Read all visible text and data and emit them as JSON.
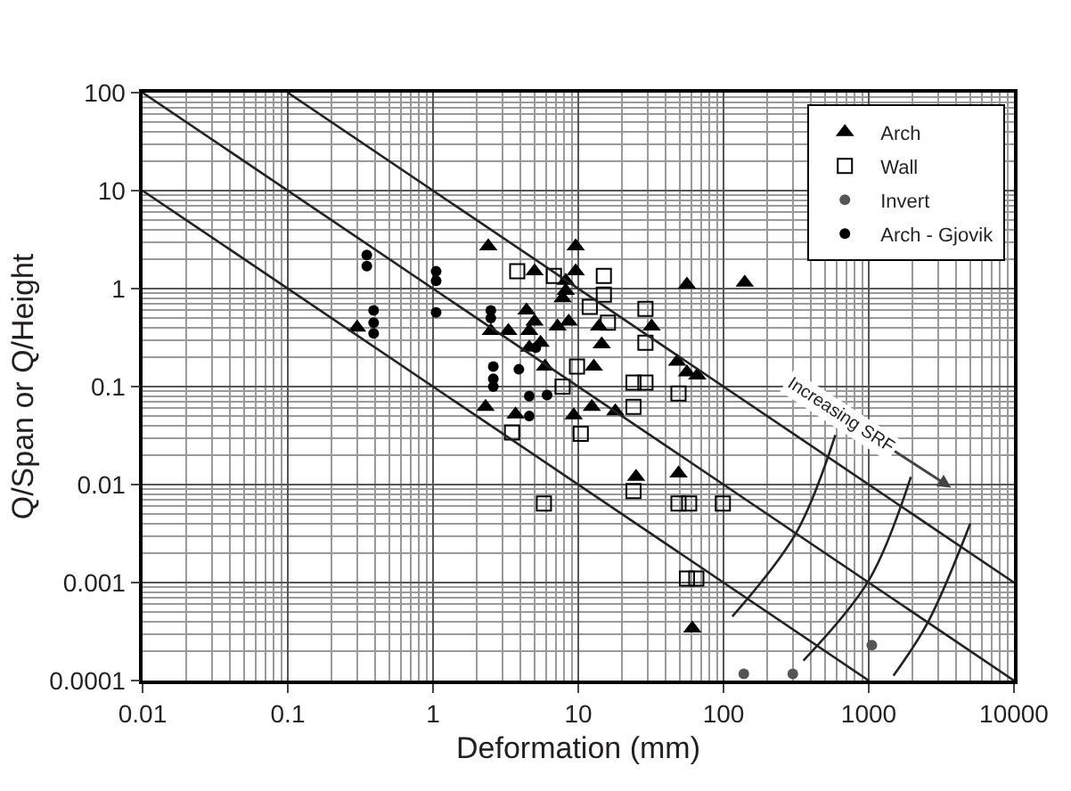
{
  "chart_data": {
    "type": "scatter",
    "xlabel": "Deformation (mm)",
    "ylabel": "Q/Span or Q/Height",
    "log": "xy",
    "grid": true,
    "legend": "top right",
    "xlim": [
      0.01,
      10000
    ],
    "xticks": [
      0.01,
      0.1,
      1,
      10,
      100,
      1000,
      10000
    ],
    "ylim": [
      0.0001,
      100
    ],
    "yticks": [
      0.0001,
      0.001,
      0.01,
      0.1,
      1,
      10,
      100
    ],
    "annotations": [
      "Increasing SRF"
    ],
    "series": [
      {
        "name": "Arch",
        "marker": "triangle",
        "color": "#000000",
        "x": [
          0.3,
          2.4,
          5,
          2.5,
          3.3,
          4.6,
          5,
          2.3,
          3.7,
          4.6,
          5.9,
          9.6,
          9.6,
          8.2,
          8.2,
          7.8,
          4.4,
          32,
          13.9,
          7.2,
          8.6,
          14.5,
          5.5,
          12.8,
          48,
          56,
          66,
          56,
          140,
          9.3,
          12.4,
          18,
          25,
          49,
          61
        ],
        "values": [
          0.4,
          2.7,
          1.5,
          0.37,
          0.37,
          0.37,
          0.46,
          0.062,
          0.052,
          0.25,
          0.16,
          2.7,
          1.5,
          1.2,
          0.95,
          0.8,
          0.6,
          0.41,
          0.41,
          0.41,
          0.46,
          0.27,
          0.28,
          0.16,
          0.18,
          0.14,
          0.13,
          1.1,
          1.15,
          0.051,
          0.062,
          0.056,
          0.012,
          0.013,
          0.00034
        ]
      },
      {
        "name": "Wall",
        "marker": "square",
        "color": "#000000",
        "x": [
          3.8,
          6.8,
          15,
          15,
          29,
          29,
          16,
          12,
          9.8,
          7.8,
          24,
          29,
          49,
          24,
          3.5,
          10.4,
          24,
          49,
          58,
          99,
          5.8,
          56,
          65
        ],
        "values": [
          1.5,
          1.35,
          1.35,
          0.87,
          0.62,
          0.28,
          0.45,
          0.65,
          0.16,
          0.1,
          0.11,
          0.11,
          0.085,
          0.062,
          0.034,
          0.033,
          0.0086,
          0.0064,
          0.0064,
          0.0064,
          0.0064,
          0.0011,
          0.0011
        ]
      },
      {
        "name": "Invert",
        "marker": "circle",
        "color": "#555555",
        "x": [
          138,
          300,
          1050
        ],
        "values": [
          0.000117,
          0.000117,
          0.00023
        ]
      },
      {
        "name": "Arch - Gjovik",
        "marker": "circle",
        "color": "#000000",
        "x": [
          0.35,
          0.35,
          0.39,
          0.39,
          0.39,
          1.05,
          1.05,
          1.05,
          2.5,
          2.5,
          2.6,
          2.6,
          2.6,
          3.9,
          4.6,
          4.6,
          6.1,
          5.1
        ],
        "values": [
          2.2,
          1.7,
          0.6,
          0.45,
          0.35,
          1.5,
          1.2,
          0.57,
          0.6,
          0.5,
          0.16,
          0.12,
          0.1,
          0.15,
          0.08,
          0.05,
          0.082,
          0.25
        ]
      },
      {
        "type": "line",
        "marker": "none",
        "color": "#222222",
        "x": [
          0.01,
          1000
        ],
        "values": [
          10,
          0.0001
        ]
      },
      {
        "type": "line",
        "marker": "none",
        "color": "#222222",
        "x": [
          0.01,
          10000
        ],
        "values": [
          100,
          0.0001
        ]
      },
      {
        "type": "line",
        "marker": "none",
        "color": "#222222",
        "x": [
          0.1,
          10000
        ],
        "values": [
          100,
          0.001
        ]
      },
      {
        "type": "line",
        "marker": "none",
        "color": "#222222",
        "x": [
          115,
          316,
          589
        ],
        "values": [
          0.00045,
          0.0032,
          0.032
        ]
      },
      {
        "type": "line",
        "marker": "none",
        "color": "#222222",
        "x": [
          355,
          1000,
          1950
        ],
        "values": [
          0.00016,
          0.00105,
          0.012
        ]
      },
      {
        "type": "line",
        "marker": "none",
        "color": "#222222",
        "x": [
          1480,
          2570,
          5000
        ],
        "values": [
          0.000112,
          0.0004,
          0.004
        ]
      }
    ]
  }
}
